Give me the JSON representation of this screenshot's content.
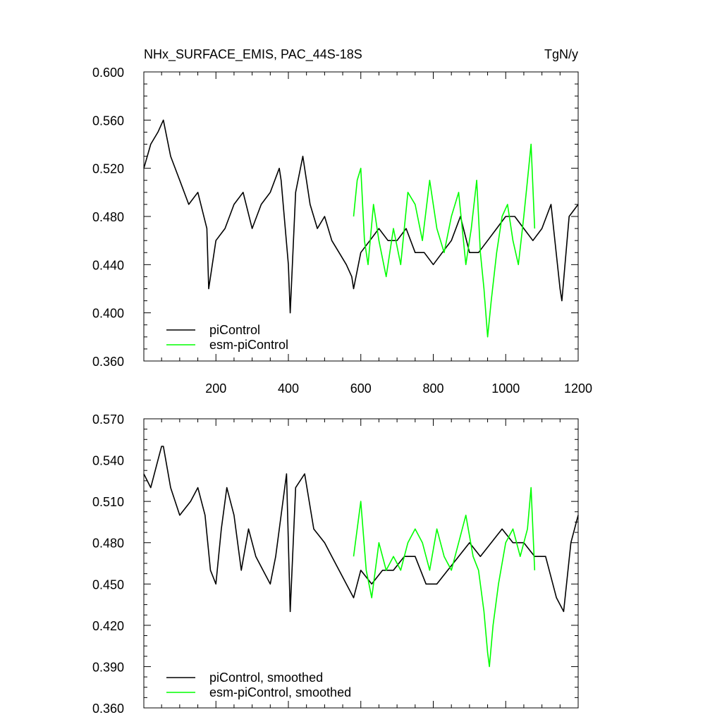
{
  "chart_data": [
    {
      "type": "line",
      "title": "NHx_SURFACE_EMIS, PAC_44S-18S",
      "units": "TgN/y",
      "xlim": [
        1,
        1200
      ],
      "ylim": [
        0.36,
        0.6
      ],
      "x_ticks": [
        200,
        400,
        600,
        800,
        1000,
        1200
      ],
      "x_tick_labels": [
        "200",
        "400",
        "600",
        "800",
        "1000",
        "1200"
      ],
      "y_ticks": [
        0.36,
        0.4,
        0.44,
        0.48,
        0.52,
        0.56,
        0.6
      ],
      "y_tick_labels": [
        "0.360",
        "0.400",
        "0.440",
        "0.480",
        "0.520",
        "0.560",
        "0.600"
      ],
      "legend_position": "bottom-left",
      "series": [
        {
          "name": "piControl",
          "color": "#000000",
          "x": [
            1,
            20,
            40,
            55,
            75,
            100,
            125,
            150,
            175,
            180,
            200,
            225,
            250,
            275,
            300,
            325,
            350,
            375,
            380,
            400,
            405,
            420,
            440,
            460,
            480,
            500,
            520,
            540,
            560,
            575,
            580,
            600,
            625,
            650,
            675,
            700,
            725,
            750,
            775,
            800,
            825,
            850,
            875,
            900,
            925,
            950,
            975,
            1000,
            1025,
            1050,
            1075,
            1100,
            1125,
            1150,
            1155,
            1175,
            1200
          ],
          "y": [
            0.52,
            0.54,
            0.55,
            0.56,
            0.53,
            0.51,
            0.49,
            0.5,
            0.47,
            0.42,
            0.46,
            0.47,
            0.49,
            0.5,
            0.47,
            0.49,
            0.5,
            0.52,
            0.51,
            0.44,
            0.4,
            0.5,
            0.53,
            0.49,
            0.47,
            0.48,
            0.46,
            0.45,
            0.44,
            0.43,
            0.42,
            0.45,
            0.46,
            0.47,
            0.46,
            0.46,
            0.47,
            0.45,
            0.45,
            0.44,
            0.45,
            0.46,
            0.48,
            0.45,
            0.45,
            0.46,
            0.47,
            0.48,
            0.48,
            0.47,
            0.46,
            0.47,
            0.49,
            0.42,
            0.41,
            0.48,
            0.49
          ]
        },
        {
          "name": "esm-piControl",
          "color": "#00ff00",
          "x": [
            580,
            590,
            600,
            610,
            620,
            635,
            650,
            670,
            690,
            710,
            730,
            750,
            770,
            790,
            810,
            830,
            850,
            870,
            890,
            905,
            920,
            930,
            940,
            950,
            960,
            975,
            990,
            1005,
            1020,
            1035,
            1050,
            1060,
            1070,
            1080
          ],
          "y": [
            0.48,
            0.51,
            0.52,
            0.46,
            0.44,
            0.49,
            0.46,
            0.43,
            0.47,
            0.44,
            0.5,
            0.49,
            0.46,
            0.51,
            0.47,
            0.45,
            0.48,
            0.5,
            0.44,
            0.47,
            0.51,
            0.45,
            0.42,
            0.38,
            0.41,
            0.45,
            0.48,
            0.49,
            0.46,
            0.44,
            0.48,
            0.51,
            0.54,
            0.47
          ]
        }
      ]
    },
    {
      "type": "line",
      "xlim": [
        1,
        1200
      ],
      "ylim": [
        0.36,
        0.57
      ],
      "y_ticks": [
        0.36,
        0.39,
        0.42,
        0.45,
        0.48,
        0.51,
        0.54,
        0.57
      ],
      "y_tick_labels": [
        "0.360",
        "0.390",
        "0.420",
        "0.450",
        "0.480",
        "0.510",
        "0.540",
        "0.570"
      ],
      "legend_position": "bottom-left",
      "series": [
        {
          "name": "piControl, smoothed",
          "color": "#000000",
          "x": [
            1,
            20,
            40,
            50,
            55,
            75,
            100,
            130,
            150,
            170,
            185,
            200,
            215,
            230,
            250,
            270,
            290,
            310,
            330,
            350,
            365,
            380,
            395,
            405,
            420,
            445,
            470,
            500,
            520,
            540,
            560,
            580,
            600,
            630,
            660,
            690,
            720,
            750,
            780,
            810,
            840,
            870,
            900,
            930,
            960,
            990,
            1020,
            1050,
            1080,
            1110,
            1140,
            1160,
            1180,
            1200
          ],
          "y": [
            0.53,
            0.52,
            0.54,
            0.55,
            0.55,
            0.52,
            0.5,
            0.51,
            0.52,
            0.5,
            0.46,
            0.45,
            0.49,
            0.52,
            0.5,
            0.46,
            0.49,
            0.47,
            0.46,
            0.45,
            0.47,
            0.5,
            0.53,
            0.43,
            0.52,
            0.53,
            0.49,
            0.48,
            0.47,
            0.46,
            0.45,
            0.44,
            0.46,
            0.45,
            0.46,
            0.46,
            0.47,
            0.47,
            0.45,
            0.45,
            0.46,
            0.47,
            0.48,
            0.47,
            0.48,
            0.49,
            0.48,
            0.48,
            0.47,
            0.47,
            0.44,
            0.43,
            0.48,
            0.5
          ]
        },
        {
          "name": "esm-piControl, smoothed",
          "color": "#00ff00",
          "x": [
            580,
            590,
            600,
            615,
            630,
            650,
            670,
            690,
            710,
            730,
            750,
            770,
            790,
            810,
            830,
            850,
            870,
            890,
            910,
            925,
            940,
            950,
            955,
            965,
            980,
            1000,
            1020,
            1040,
            1060,
            1070,
            1080
          ],
          "y": [
            0.47,
            0.49,
            0.51,
            0.46,
            0.44,
            0.48,
            0.46,
            0.47,
            0.46,
            0.48,
            0.49,
            0.48,
            0.46,
            0.49,
            0.47,
            0.46,
            0.48,
            0.5,
            0.47,
            0.46,
            0.43,
            0.4,
            0.39,
            0.42,
            0.45,
            0.48,
            0.49,
            0.47,
            0.49,
            0.52,
            0.46
          ]
        }
      ]
    }
  ]
}
